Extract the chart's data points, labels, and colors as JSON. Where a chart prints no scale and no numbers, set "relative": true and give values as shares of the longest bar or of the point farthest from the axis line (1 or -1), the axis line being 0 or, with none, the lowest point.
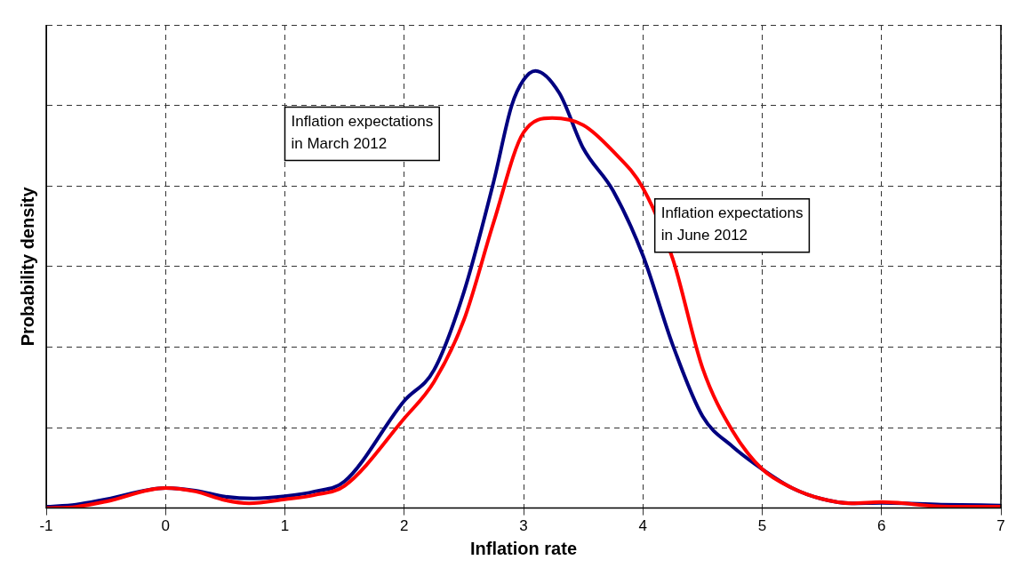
{
  "chart_data": {
    "type": "line",
    "xlabel": "Inflation rate",
    "ylabel": "Probability density",
    "relative": true,
    "grid": true,
    "legend": false,
    "marker": "none",
    "line_style": "solid",
    "xlim": [
      -1,
      7
    ],
    "xticks": [
      -1,
      0,
      1,
      2,
      3,
      4,
      5,
      6,
      7
    ],
    "annotations": [
      "Inflation expectations\nin March 2012",
      "Inflation expectations\nin June 2012"
    ],
    "series": [
      {
        "color": "#000080",
        "x": [
          -1,
          -0.75,
          -0.5,
          0,
          0.25,
          0.5,
          0.74,
          1,
          1.25,
          1.5,
          2,
          2.25,
          2.5,
          2.75,
          2.9,
          3,
          3.1,
          3.3,
          3.5,
          3.75,
          4,
          4.25,
          4.5,
          4.75,
          5,
          5.25,
          5.5,
          5.75,
          6,
          6.5,
          7
        ],
        "values": [
          0.003,
          0.008,
          0.02,
          0.046,
          0.04,
          0.026,
          0.022,
          0.027,
          0.038,
          0.061,
          0.245,
          0.316,
          0.494,
          0.747,
          0.92,
          0.979,
          1,
          0.949,
          0.823,
          0.726,
          0.578,
          0.373,
          0.21,
          0.141,
          0.089,
          0.046,
          0.021,
          0.011,
          0.012,
          0.008,
          0.006
        ]
      },
      {
        "color": "#ff0000",
        "x": [
          -1,
          -0.75,
          -0.5,
          0,
          0.25,
          0.5,
          0.7,
          1,
          1.25,
          1.5,
          2,
          2.25,
          2.5,
          2.75,
          3,
          3.24,
          3.5,
          3.75,
          4,
          4.25,
          4.5,
          4.75,
          5,
          5.25,
          5.5,
          5.75,
          6,
          6.5,
          7
        ],
        "values": [
          0,
          0.003,
          0.015,
          0.046,
          0.038,
          0.018,
          0.011,
          0.02,
          0.03,
          0.051,
          0.205,
          0.289,
          0.43,
          0.654,
          0.859,
          0.892,
          0.876,
          0.816,
          0.732,
          0.57,
          0.32,
          0.177,
          0.089,
          0.046,
          0.021,
          0.011,
          0.014,
          0.004,
          0.003
        ]
      }
    ]
  }
}
